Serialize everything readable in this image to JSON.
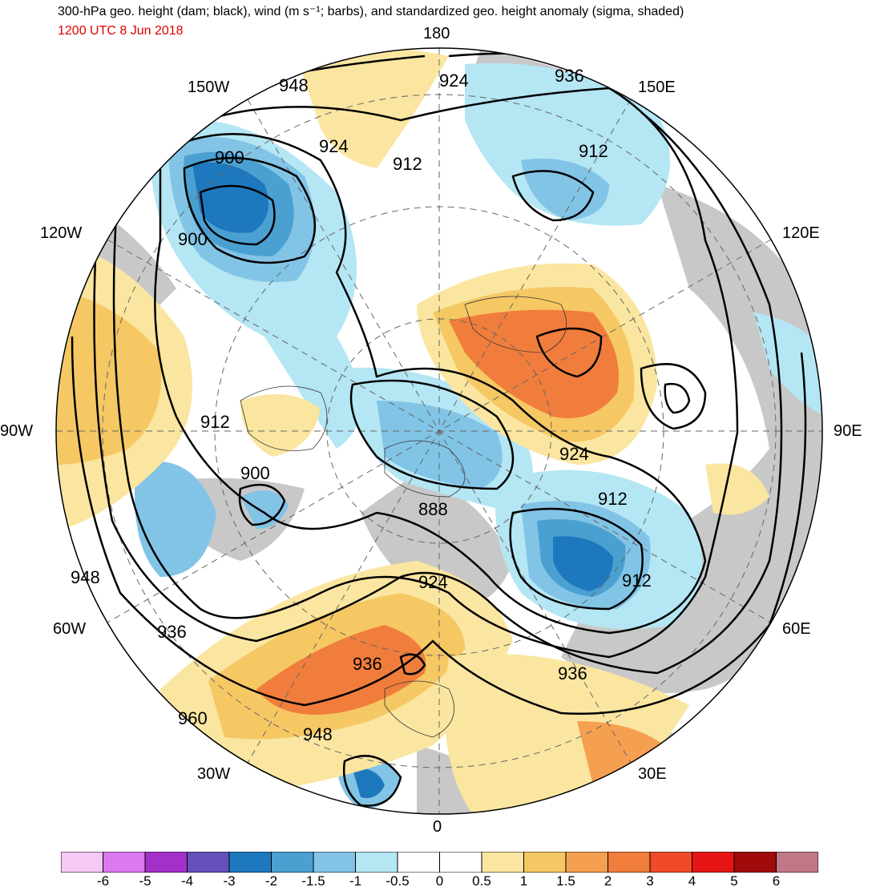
{
  "title": "300-hPa geo. height (dam; black), wind (m s⁻¹; barbs), and standardized geo. height anomaly (sigma, shaded)",
  "valid_time": "1200 UTC 8 Jun 2018",
  "longitude_labels": {
    "n180": "180",
    "w150": "150W",
    "e150": "150E",
    "w120": "120W",
    "e120": "120E",
    "w90": "90W",
    "e90": "90E",
    "w60": "60W",
    "e60": "60E",
    "w30": "30W",
    "e30": "30E",
    "s0": "0"
  },
  "contour_labels": [
    "948",
    "924",
    "936",
    "900",
    "924",
    "912",
    "912",
    "900",
    "912",
    "924",
    "900",
    "888",
    "912",
    "924",
    "948",
    "936",
    "936",
    "936",
    "960",
    "948"
  ],
  "colorbar": {
    "ticks": [
      "-6",
      "-5",
      "-4",
      "-3",
      "-2",
      "-1.5",
      "-1",
      "-0.5",
      "0",
      "0.5",
      "1",
      "1.5",
      "2",
      "3",
      "4",
      "5",
      "6"
    ],
    "colors": [
      "#f6c8f6",
      "#dc78f0",
      "#a330c8",
      "#6450b8",
      "#1e78be",
      "#4ba0d2",
      "#82c4e6",
      "#b4e6f4",
      "#ffffff",
      "#ffffff",
      "#fae6a0",
      "#f5c864",
      "#f5a050",
      "#f07d3c",
      "#f04b28",
      "#e61414",
      "#a00a0a",
      "#c07888"
    ]
  },
  "map_colors": {
    "land_gray": "#c8c8c8",
    "strong_negative": "#1e78be",
    "moderate_negative": "#4ba0d2",
    "weak_negative": "#82c4e6",
    "slight_negative": "#b4e6f4",
    "slight_positive": "#fae6a0",
    "moderate_positive": "#f5c864",
    "strong_positive": "#f07d3c"
  }
}
